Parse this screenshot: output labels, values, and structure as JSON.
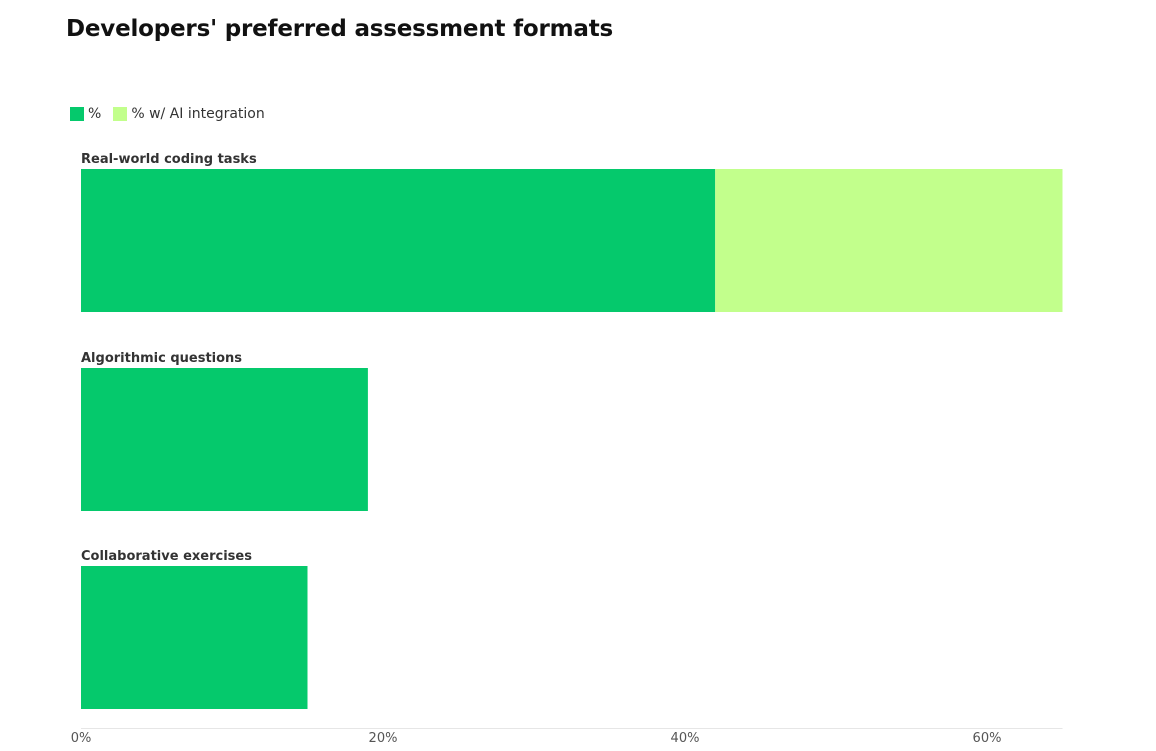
{
  "colors": {
    "primary": "#05c96c",
    "ai": "#c2ff8c",
    "axis": "#e6e6e6"
  },
  "legend": {
    "items": [
      {
        "label": "%",
        "color": "#05c96c"
      },
      {
        "label": "% w/ AI integration",
        "color": "#c2ff8c"
      }
    ]
  },
  "chart_data": {
    "type": "bar",
    "orientation": "horizontal",
    "stacked": true,
    "title": "Developers' preferred assessment formats",
    "categories": [
      "Real-world coding tasks",
      "Algorithmic questions",
      "Collaborative exercises"
    ],
    "series": [
      {
        "name": "%",
        "values": [
          42,
          19,
          15
        ]
      },
      {
        "name": "% w/ AI integration",
        "values": [
          23,
          0,
          0
        ]
      }
    ],
    "xlim": [
      0,
      65
    ],
    "xticks": [
      0,
      20,
      40,
      60
    ],
    "xtick_labels": [
      "0%",
      "20%",
      "40%",
      "60%"
    ],
    "grid": false,
    "legend_position": "top-left"
  }
}
